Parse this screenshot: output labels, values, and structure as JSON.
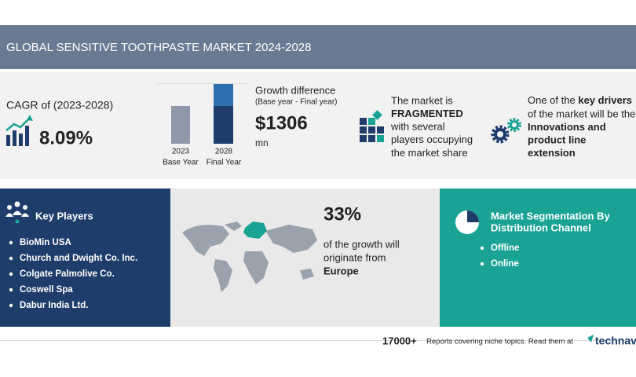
{
  "header": {
    "title": "GLOBAL SENSITIVE TOOTHPASTE MARKET 2024-2028"
  },
  "cagr": {
    "label": "CAGR of (2023-2028)",
    "value": "8.09%"
  },
  "bars": {
    "base": [
      "2023",
      "Base Year"
    ],
    "final": [
      "2028",
      "Final Year"
    ]
  },
  "growth": {
    "label": "Growth difference",
    "sublabel": "(Base year - Final year)",
    "value": "$1306",
    "unit": "mn"
  },
  "market": {
    "lines": [
      "The market is",
      "FRAGMENTED",
      "with several",
      "players occupying",
      "the market share"
    ]
  },
  "drivers": {
    "intro": "One of the",
    "intro_bold": "key drivers",
    "lines": [
      "of the market will be the",
      "Innovations and",
      "product line",
      "extension"
    ]
  },
  "key_players": {
    "title": "Key Players",
    "items": [
      "BioMin USA",
      "Church and Dwight Co. Inc.",
      "Colgate Palmolive Co.",
      "Coswell Spa",
      "Dabur India Ltd."
    ]
  },
  "region": {
    "share": "33%",
    "lines": [
      "of the growth will",
      "originate from"
    ],
    "region": "Europe"
  },
  "segmentation": {
    "title": [
      "Market Segmentation By",
      "Distribution Channel"
    ],
    "items": [
      "Offline",
      "Online"
    ]
  },
  "footer": {
    "count": "17000+",
    "text": "Reports covering niche topics. Read them at",
    "brand": "technavio"
  }
}
